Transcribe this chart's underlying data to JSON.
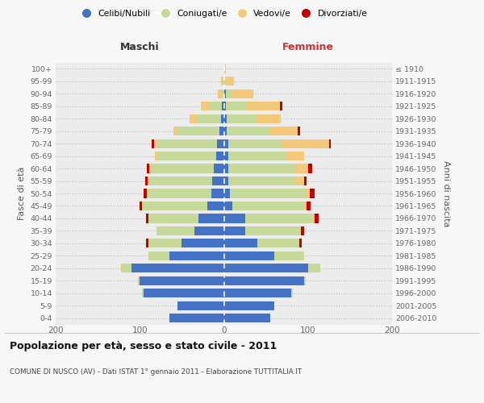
{
  "age_groups": [
    "0-4",
    "5-9",
    "10-14",
    "15-19",
    "20-24",
    "25-29",
    "30-34",
    "35-39",
    "40-44",
    "45-49",
    "50-54",
    "55-59",
    "60-64",
    "65-69",
    "70-74",
    "75-79",
    "80-84",
    "85-89",
    "90-94",
    "95-99",
    "100+"
  ],
  "birth_years": [
    "2006-2010",
    "2001-2005",
    "1996-2000",
    "1991-1995",
    "1986-1990",
    "1981-1985",
    "1976-1980",
    "1971-1975",
    "1966-1970",
    "1961-1965",
    "1956-1960",
    "1951-1955",
    "1946-1950",
    "1941-1945",
    "1936-1940",
    "1931-1935",
    "1926-1930",
    "1921-1925",
    "1916-1920",
    "1911-1915",
    "≤ 1910"
  ],
  "colors": {
    "celibi": "#4472C4",
    "coniugati": "#C5D99A",
    "vedovi": "#F5C97A",
    "divorziati": "#C00000"
  },
  "maschi": {
    "celibi": [
      65,
      55,
      95,
      100,
      110,
      65,
      50,
      35,
      30,
      20,
      15,
      14,
      12,
      9,
      8,
      5,
      3,
      2,
      0,
      0,
      0
    ],
    "coniugati": [
      0,
      0,
      2,
      2,
      10,
      25,
      40,
      45,
      60,
      75,
      75,
      75,
      75,
      70,
      70,
      50,
      30,
      15,
      2,
      1,
      0
    ],
    "vedovi": [
      0,
      0,
      0,
      0,
      2,
      0,
      0,
      0,
      0,
      2,
      2,
      2,
      2,
      3,
      5,
      5,
      8,
      10,
      5,
      2,
      0
    ],
    "divorziati": [
      0,
      0,
      0,
      0,
      0,
      0,
      3,
      0,
      3,
      3,
      3,
      3,
      3,
      0,
      3,
      0,
      0,
      0,
      0,
      0,
      0
    ]
  },
  "femmine": {
    "celibi": [
      55,
      60,
      80,
      95,
      100,
      60,
      40,
      25,
      25,
      10,
      7,
      5,
      5,
      5,
      5,
      3,
      3,
      2,
      2,
      0,
      0
    ],
    "coniugati": [
      0,
      0,
      2,
      2,
      15,
      35,
      50,
      65,
      80,
      85,
      90,
      80,
      80,
      70,
      65,
      50,
      35,
      25,
      8,
      2,
      0
    ],
    "vedovi": [
      0,
      0,
      0,
      0,
      0,
      0,
      0,
      2,
      3,
      3,
      5,
      10,
      15,
      20,
      55,
      35,
      30,
      40,
      25,
      10,
      2
    ],
    "divorziati": [
      0,
      0,
      0,
      0,
      0,
      0,
      3,
      3,
      5,
      5,
      6,
      3,
      5,
      0,
      2,
      3,
      0,
      3,
      0,
      0,
      0
    ]
  },
  "xlim": 200,
  "title": "Popolazione per età, sesso e stato civile - 2011",
  "subtitle": "COMUNE DI NUSCO (AV) - Dati ISTAT 1° gennaio 2011 - Elaborazione TUTTITALIA.IT",
  "ylabel_left": "Fasce di età",
  "ylabel_right": "Anni di nascita",
  "xlabel_maschi": "Maschi",
  "xlabel_femmine": "Femmine",
  "legend_labels": [
    "Celibi/Nubili",
    "Coniugati/e",
    "Vedovi/e",
    "Divorziati/e"
  ],
  "background_color": "#f7f7f7",
  "plot_bg_color": "#ececec"
}
